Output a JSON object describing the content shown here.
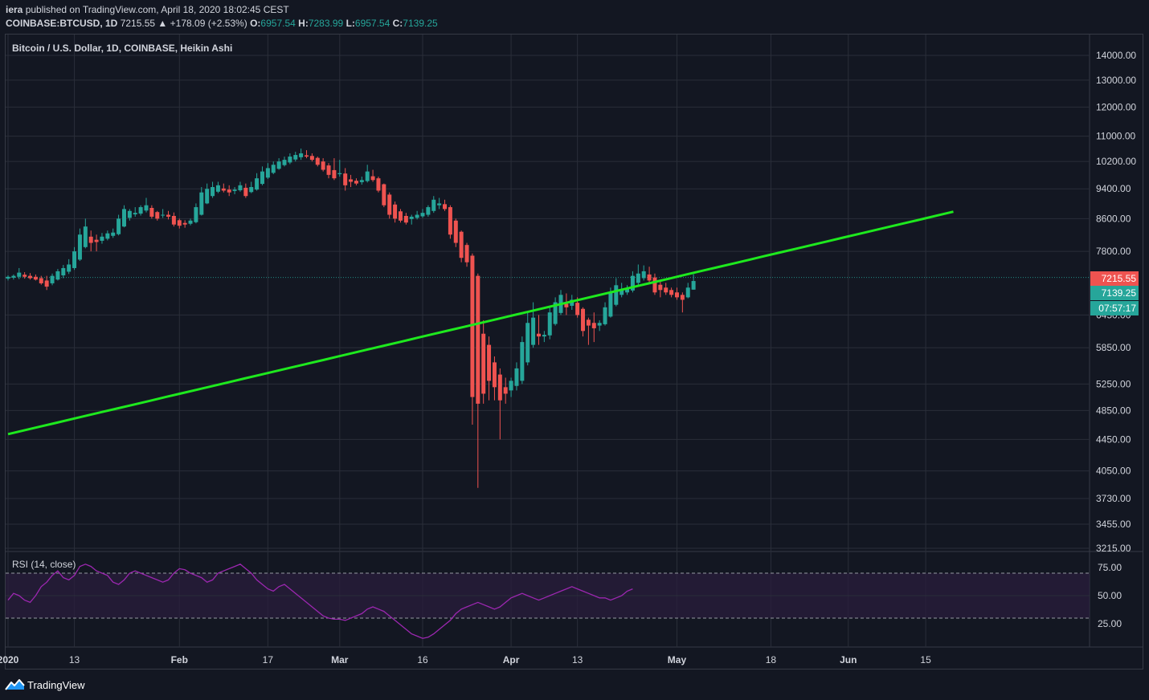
{
  "header": {
    "author": "iera",
    "publish_text": "published on TradingView.com, April 18, 2020 18:02:45 CEST",
    "symbol": "COINBASE:BTCUSD, 1D",
    "last_price": "7215.55",
    "change": "+178.09 (+2.53%)",
    "open_label": "O:",
    "open_value": "6957.54",
    "high_label": "H:",
    "high_value": "7283.99",
    "low_label": "L:",
    "low_value": "6957.54",
    "close_label": "C:",
    "close_value": "7139.25"
  },
  "chart_title": "Bitcoin / U.S. Dollar, 1D, COINBASE, Heikin Ashi",
  "rsi_title": "RSI (14, close)",
  "footer": {
    "brand": "TradingView"
  },
  "colors": {
    "background": "#131722",
    "grid": "#2a2e39",
    "up": "#26a69a",
    "down": "#ef5350",
    "trendline": "#1ee91e",
    "rsi_line": "#9c27b0",
    "rsi_band": "#2a1e3c"
  },
  "badges": {
    "last_price": "7215.55",
    "close_price": "7139.25",
    "countdown": "07:57:17"
  },
  "chart_data": [
    {
      "type": "candlestick",
      "title": "Bitcoin / U.S. Dollar, 1D, COINBASE, Heikin Ashi",
      "scale": "log",
      "y_ticks": [
        14000,
        13000,
        12000,
        11000,
        10200,
        9400,
        8600,
        7800,
        6450,
        5850,
        5250,
        4850,
        4450,
        4050,
        3730,
        3455,
        3215
      ],
      "y_tick_labels": [
        "14000.00",
        "13000.00",
        "12000.00",
        "11000.00",
        "10200.00",
        "9400.00",
        "8600.00",
        "7800.00",
        "6450.00",
        "5850.00",
        "5250.00",
        "4850.00",
        "4450.00",
        "4050.00",
        "3730.00",
        "3455.00",
        "3215.00"
      ],
      "x_tick_labels": [
        "2020",
        "13",
        "Feb",
        "17",
        "Mar",
        "16",
        "Apr",
        "13",
        "May",
        "18",
        "Jun",
        "15"
      ],
      "x_tick_days": [
        0,
        12,
        31,
        47,
        60,
        75,
        91,
        103,
        121,
        138,
        152,
        166
      ],
      "grid": true,
      "candles": [
        {
          "o": 7190,
          "h": 7260,
          "l": 7150,
          "c": 7230
        },
        {
          "o": 7210,
          "h": 7280,
          "l": 7170,
          "c": 7250
        },
        {
          "o": 7230,
          "h": 7420,
          "l": 7180,
          "c": 7320
        },
        {
          "o": 7275,
          "h": 7330,
          "l": 7190,
          "c": 7230
        },
        {
          "o": 7250,
          "h": 7310,
          "l": 7170,
          "c": 7200
        },
        {
          "o": 7230,
          "h": 7280,
          "l": 7150,
          "c": 7170
        },
        {
          "o": 7200,
          "h": 7250,
          "l": 7060,
          "c": 7090
        },
        {
          "o": 7150,
          "h": 7250,
          "l": 6950,
          "c": 7020
        },
        {
          "o": 7090,
          "h": 7300,
          "l": 7050,
          "c": 7250
        },
        {
          "o": 7170,
          "h": 7400,
          "l": 7150,
          "c": 7350
        },
        {
          "o": 7260,
          "h": 7490,
          "l": 7200,
          "c": 7420
        },
        {
          "o": 7340,
          "h": 7620,
          "l": 7290,
          "c": 7500
        },
        {
          "o": 7420,
          "h": 7900,
          "l": 7380,
          "c": 7800
        },
        {
          "o": 7610,
          "h": 8350,
          "l": 7580,
          "c": 8200
        },
        {
          "o": 7900,
          "h": 8600,
          "l": 7870,
          "c": 8400
        },
        {
          "o": 8150,
          "h": 8300,
          "l": 7800,
          "c": 8000
        },
        {
          "o": 8075,
          "h": 8200,
          "l": 7800,
          "c": 8020
        },
        {
          "o": 8050,
          "h": 8240,
          "l": 7980,
          "c": 8150
        },
        {
          "o": 8100,
          "h": 8300,
          "l": 8060,
          "c": 8230
        },
        {
          "o": 8170,
          "h": 8350,
          "l": 8120,
          "c": 8250
        },
        {
          "o": 8210,
          "h": 8700,
          "l": 8180,
          "c": 8600
        },
        {
          "o": 8400,
          "h": 8950,
          "l": 8380,
          "c": 8850
        },
        {
          "o": 8620,
          "h": 8850,
          "l": 8550,
          "c": 8800
        },
        {
          "o": 8710,
          "h": 8900,
          "l": 8650,
          "c": 8750
        },
        {
          "o": 8730,
          "h": 8950,
          "l": 8680,
          "c": 8900
        },
        {
          "o": 8810,
          "h": 9150,
          "l": 8760,
          "c": 8950
        },
        {
          "o": 8880,
          "h": 8950,
          "l": 8600,
          "c": 8650
        },
        {
          "o": 8770,
          "h": 8800,
          "l": 8550,
          "c": 8600
        },
        {
          "o": 8690,
          "h": 8850,
          "l": 8620,
          "c": 8700
        },
        {
          "o": 8700,
          "h": 8800,
          "l": 8580,
          "c": 8650
        },
        {
          "o": 8670,
          "h": 8760,
          "l": 8400,
          "c": 8450
        },
        {
          "o": 8560,
          "h": 8600,
          "l": 8350,
          "c": 8420
        },
        {
          "o": 8490,
          "h": 8560,
          "l": 8370,
          "c": 8450
        },
        {
          "o": 8470,
          "h": 8600,
          "l": 8430,
          "c": 8550
        },
        {
          "o": 8510,
          "h": 9000,
          "l": 8480,
          "c": 8900
        },
        {
          "o": 8700,
          "h": 9450,
          "l": 8680,
          "c": 9300
        },
        {
          "o": 9000,
          "h": 9550,
          "l": 8980,
          "c": 9400
        },
        {
          "o": 9200,
          "h": 9600,
          "l": 9150,
          "c": 9450
        },
        {
          "o": 9320,
          "h": 9600,
          "l": 9280,
          "c": 9500
        },
        {
          "o": 9410,
          "h": 9550,
          "l": 9300,
          "c": 9350
        },
        {
          "o": 9380,
          "h": 9500,
          "l": 9200,
          "c": 9300
        },
        {
          "o": 9340,
          "h": 9450,
          "l": 9250,
          "c": 9380
        },
        {
          "o": 9360,
          "h": 9600,
          "l": 9320,
          "c": 9500
        },
        {
          "o": 9430,
          "h": 9550,
          "l": 9150,
          "c": 9200
        },
        {
          "o": 9310,
          "h": 9600,
          "l": 9280,
          "c": 9450
        },
        {
          "o": 9380,
          "h": 9850,
          "l": 9350,
          "c": 9700
        },
        {
          "o": 9540,
          "h": 10050,
          "l": 9500,
          "c": 9900
        },
        {
          "o": 9720,
          "h": 10150,
          "l": 9680,
          "c": 10000
        },
        {
          "o": 9860,
          "h": 10200,
          "l": 9820,
          "c": 10100
        },
        {
          "o": 9980,
          "h": 10300,
          "l": 9950,
          "c": 10200
        },
        {
          "o": 10090,
          "h": 10350,
          "l": 10050,
          "c": 10250
        },
        {
          "o": 10170,
          "h": 10450,
          "l": 10120,
          "c": 10350
        },
        {
          "o": 10260,
          "h": 10500,
          "l": 10200,
          "c": 10400
        },
        {
          "o": 10330,
          "h": 10600,
          "l": 10250,
          "c": 10450
        },
        {
          "o": 10390,
          "h": 10550,
          "l": 10300,
          "c": 10350
        },
        {
          "o": 10370,
          "h": 10450,
          "l": 10200,
          "c": 10250
        },
        {
          "o": 10310,
          "h": 10350,
          "l": 10050,
          "c": 10100
        },
        {
          "o": 10200,
          "h": 10300,
          "l": 9900,
          "c": 9950
        },
        {
          "o": 10080,
          "h": 10150,
          "l": 9700,
          "c": 9800
        },
        {
          "o": 9940,
          "h": 10300,
          "l": 9650,
          "c": 9700
        },
        {
          "o": 9820,
          "h": 10250,
          "l": 9750,
          "c": 9850
        },
        {
          "o": 9840,
          "h": 10000,
          "l": 9350,
          "c": 9500
        },
        {
          "o": 9670,
          "h": 9800,
          "l": 9450,
          "c": 9600
        },
        {
          "o": 9630,
          "h": 9700,
          "l": 9500,
          "c": 9550
        },
        {
          "o": 9590,
          "h": 9750,
          "l": 9520,
          "c": 9650
        },
        {
          "o": 9620,
          "h": 10100,
          "l": 9580,
          "c": 9900
        },
        {
          "o": 9760,
          "h": 9950,
          "l": 9600,
          "c": 9650
        },
        {
          "o": 9700,
          "h": 9750,
          "l": 9300,
          "c": 9350
        },
        {
          "o": 9530,
          "h": 9550,
          "l": 8900,
          "c": 8950
        },
        {
          "o": 9240,
          "h": 9300,
          "l": 8600,
          "c": 8700
        },
        {
          "o": 8970,
          "h": 9050,
          "l": 8500,
          "c": 8600
        },
        {
          "o": 8790,
          "h": 8850,
          "l": 8500,
          "c": 8550
        },
        {
          "o": 8670,
          "h": 8750,
          "l": 8450,
          "c": 8500
        },
        {
          "o": 8590,
          "h": 8700,
          "l": 8450,
          "c": 8650
        },
        {
          "o": 8620,
          "h": 8800,
          "l": 8580,
          "c": 8700
        },
        {
          "o": 8660,
          "h": 8850,
          "l": 8620,
          "c": 8750
        },
        {
          "o": 8700,
          "h": 8950,
          "l": 8650,
          "c": 8900
        },
        {
          "o": 8800,
          "h": 9200,
          "l": 8750,
          "c": 9100
        },
        {
          "o": 8950,
          "h": 9150,
          "l": 8850,
          "c": 9000
        },
        {
          "o": 8980,
          "h": 9100,
          "l": 8800,
          "c": 8850
        },
        {
          "o": 8900,
          "h": 8950,
          "l": 8100,
          "c": 8200
        },
        {
          "o": 8550,
          "h": 8600,
          "l": 7900,
          "c": 8000
        },
        {
          "o": 8270,
          "h": 8300,
          "l": 7550,
          "c": 7650
        },
        {
          "o": 7950,
          "h": 8000,
          "l": 7450,
          "c": 7550
        },
        {
          "o": 7700,
          "h": 7750,
          "l": 4650,
          "c": 5050
        },
        {
          "o": 7250,
          "h": 7300,
          "l": 3850,
          "c": 4950
        },
        {
          "o": 6100,
          "h": 6350,
          "l": 4950,
          "c": 5100
        },
        {
          "o": 5900,
          "h": 6050,
          "l": 5000,
          "c": 5300
        },
        {
          "o": 5600,
          "h": 5700,
          "l": 5000,
          "c": 5200
        },
        {
          "o": 5400,
          "h": 5500,
          "l": 4450,
          "c": 5000
        },
        {
          "o": 5200,
          "h": 5350,
          "l": 4950,
          "c": 5100
        },
        {
          "o": 5150,
          "h": 5350,
          "l": 5050,
          "c": 5300
        },
        {
          "o": 5220,
          "h": 5600,
          "l": 5150,
          "c": 5500
        },
        {
          "o": 5300,
          "h": 6050,
          "l": 5250,
          "c": 5950
        },
        {
          "o": 5600,
          "h": 6500,
          "l": 5550,
          "c": 6300
        },
        {
          "o": 5900,
          "h": 6700,
          "l": 5850,
          "c": 6400
        },
        {
          "o": 6100,
          "h": 6450,
          "l": 5900,
          "c": 6050
        },
        {
          "o": 6050,
          "h": 6150,
          "l": 5950,
          "c": 6080
        },
        {
          "o": 6070,
          "h": 6600,
          "l": 6000,
          "c": 6500
        },
        {
          "o": 6280,
          "h": 6800,
          "l": 6250,
          "c": 6700
        },
        {
          "o": 6490,
          "h": 6950,
          "l": 6450,
          "c": 6850
        },
        {
          "o": 6670,
          "h": 6880,
          "l": 6450,
          "c": 6600
        },
        {
          "o": 6630,
          "h": 6850,
          "l": 6550,
          "c": 6750
        },
        {
          "o": 6690,
          "h": 6800,
          "l": 6400,
          "c": 6450
        },
        {
          "o": 6570,
          "h": 6600,
          "l": 6050,
          "c": 6150
        },
        {
          "o": 6360,
          "h": 6400,
          "l": 5900,
          "c": 6250
        },
        {
          "o": 6300,
          "h": 6500,
          "l": 5950,
          "c": 6200
        },
        {
          "o": 6250,
          "h": 6350,
          "l": 6150,
          "c": 6300
        },
        {
          "o": 6275,
          "h": 6700,
          "l": 6250,
          "c": 6600
        },
        {
          "o": 6420,
          "h": 7000,
          "l": 6400,
          "c": 6900
        },
        {
          "o": 6650,
          "h": 7200,
          "l": 6620,
          "c": 7050
        },
        {
          "o": 6850,
          "h": 7100,
          "l": 6800,
          "c": 6950
        },
        {
          "o": 6900,
          "h": 7050,
          "l": 6850,
          "c": 6980
        },
        {
          "o": 6940,
          "h": 7350,
          "l": 6900,
          "c": 7250
        },
        {
          "o": 7100,
          "h": 7500,
          "l": 7050,
          "c": 7300
        },
        {
          "o": 7200,
          "h": 7480,
          "l": 7150,
          "c": 7350
        },
        {
          "o": 7280,
          "h": 7450,
          "l": 7100,
          "c": 7150
        },
        {
          "o": 7215,
          "h": 7300,
          "l": 6850,
          "c": 6900
        },
        {
          "o": 7060,
          "h": 7150,
          "l": 6800,
          "c": 6950
        },
        {
          "o": 7000,
          "h": 7100,
          "l": 6850,
          "c": 6900
        },
        {
          "o": 6950,
          "h": 7000,
          "l": 6800,
          "c": 6850
        },
        {
          "o": 6900,
          "h": 7000,
          "l": 6750,
          "c": 6800
        },
        {
          "o": 6850,
          "h": 6900,
          "l": 6500,
          "c": 6750
        },
        {
          "o": 6800,
          "h": 7100,
          "l": 6780,
          "c": 7000
        },
        {
          "o": 6957.54,
          "h": 7283.99,
          "l": 6957.54,
          "c": 7139.25
        }
      ],
      "trendline": {
        "start": {
          "day": 0,
          "value": 4520
        },
        "end": {
          "day": 171,
          "value": 8780
        }
      },
      "current_price_line": 7215.55
    },
    {
      "type": "line",
      "title": "RSI (14, close)",
      "y_ticks": [
        75,
        50,
        25
      ],
      "y_tick_labels": [
        "75.00",
        "50.00",
        "25.00"
      ],
      "band": [
        30,
        70
      ],
      "values": [
        46,
        52,
        50,
        46,
        44,
        50,
        58,
        62,
        68,
        72,
        66,
        64,
        68,
        76,
        78,
        76,
        72,
        70,
        68,
        62,
        60,
        64,
        70,
        72,
        70,
        68,
        66,
        64,
        62,
        64,
        70,
        74,
        73,
        70,
        68,
        66,
        62,
        64,
        70,
        72,
        74,
        76,
        78,
        74,
        70,
        64,
        60,
        56,
        54,
        58,
        60,
        56,
        52,
        48,
        44,
        40,
        36,
        32,
        30,
        29,
        29,
        28,
        30,
        32,
        34,
        38,
        40,
        38,
        36,
        32,
        28,
        24,
        20,
        16,
        14,
        12,
        13,
        16,
        20,
        24,
        28,
        34,
        38,
        40,
        42,
        44,
        42,
        40,
        38,
        40,
        44,
        48,
        50,
        52,
        50,
        48,
        46,
        48,
        50,
        52,
        54,
        56,
        58,
        56,
        54,
        52,
        50,
        48,
        48,
        46,
        48,
        50,
        54,
        56
      ]
    }
  ]
}
